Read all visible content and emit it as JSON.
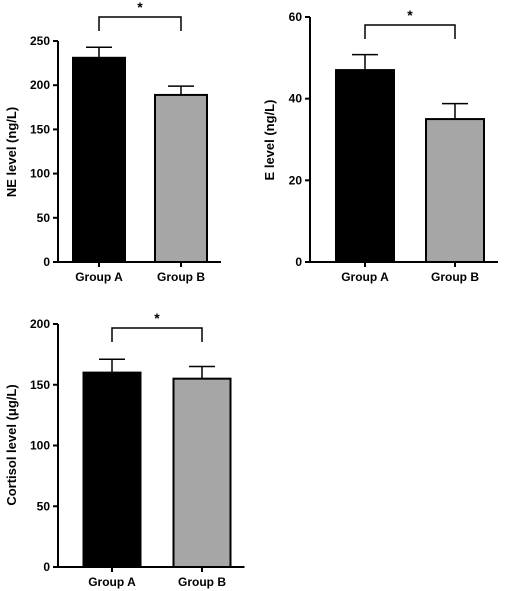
{
  "chart_data": [
    {
      "type": "bar",
      "categories": [
        "Group A",
        "Group B"
      ],
      "values": [
        231,
        189
      ],
      "errors": [
        12,
        10
      ],
      "ylabel": "NE level (ng/L)",
      "ylim": [
        0,
        250
      ],
      "yticks": [
        "0",
        "50",
        "100",
        "150",
        "200",
        "250"
      ],
      "significance": "*",
      "colors": [
        "#000000",
        "#a6a6a6"
      ],
      "grid": false
    },
    {
      "type": "bar",
      "categories": [
        "Group A",
        "Group B"
      ],
      "values": [
        47,
        35
      ],
      "errors": [
        3.8,
        3.8
      ],
      "ylabel": "E level (ng/L)",
      "ylim": [
        0,
        60
      ],
      "yticks": [
        "0",
        "20",
        "40",
        "60"
      ],
      "significance": "*",
      "colors": [
        "#000000",
        "#a6a6a6"
      ],
      "grid": false
    },
    {
      "type": "bar",
      "categories": [
        "Group A",
        "Group B"
      ],
      "values": [
        160,
        155
      ],
      "errors": [
        11,
        10
      ],
      "ylabel": "Cortisol level (μg/L)",
      "ylim": [
        0,
        200
      ],
      "yticks": [
        "0",
        "50",
        "100",
        "150",
        "200"
      ],
      "significance": "*",
      "colors": [
        "#000000",
        "#a6a6a6"
      ],
      "grid": false
    }
  ]
}
